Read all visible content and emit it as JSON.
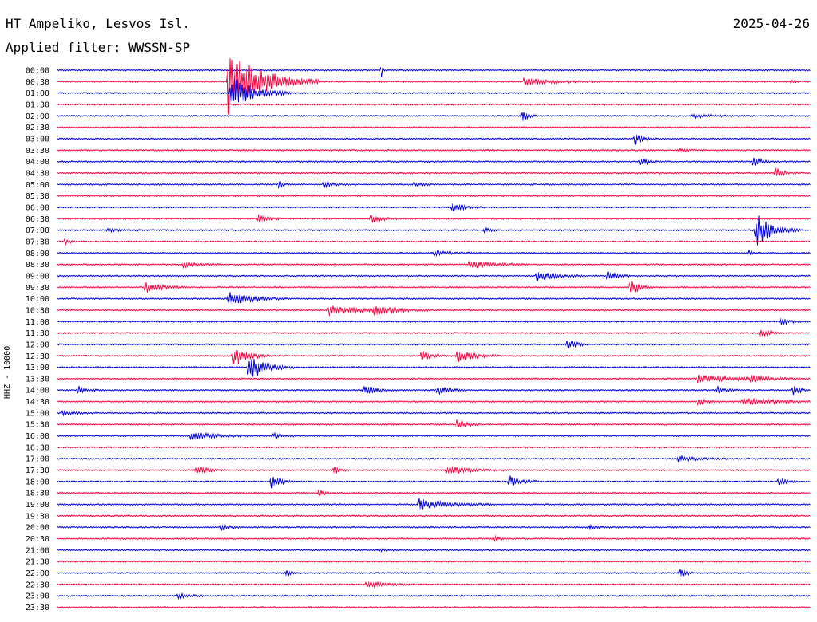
{
  "header": {
    "station": "HT Ampeliko, Lesvos Isl.",
    "filter": "Applied filter: WWSSN-SP",
    "date": "2025-04-26"
  },
  "chart_data": {
    "type": "line",
    "title": "HT Ampeliko, Lesvos Isl.",
    "subtitle": "Applied filter: WWSSN-SP",
    "ylabel": "HHZ - 10000",
    "xlabel": "",
    "grid": false,
    "colors": [
      "#0000dd",
      "#ff0040"
    ],
    "row_labels": [
      "00:00",
      "00:30",
      "01:00",
      "01:30",
      "02:00",
      "02:30",
      "03:00",
      "03:30",
      "04:00",
      "04:30",
      "05:00",
      "05:30",
      "06:00",
      "06:30",
      "07:00",
      "07:30",
      "08:00",
      "08:30",
      "09:00",
      "09:30",
      "10:00",
      "10:30",
      "11:00",
      "11:30",
      "12:00",
      "12:30",
      "13:00",
      "13:30",
      "14:00",
      "14:30",
      "15:00",
      "15:30",
      "16:00",
      "16:30",
      "17:00",
      "17:30",
      "18:00",
      "18:30",
      "19:00",
      "19:30",
      "20:00",
      "20:30",
      "21:00",
      "21:30",
      "22:00",
      "22:30",
      "23:00",
      "23:30"
    ],
    "xlim": [
      0,
      30
    ],
    "events": [
      {
        "row": 0,
        "t": 12.9,
        "amp": 1.0,
        "dur": 0.06
      },
      {
        "row": 1,
        "t": 6.8,
        "amp": 4.0,
        "dur": 1.2
      },
      {
        "row": 1,
        "t": 18.6,
        "amp": 0.4,
        "dur": 1.0
      },
      {
        "row": 1,
        "t": 29.2,
        "amp": 0.15,
        "dur": 0.2
      },
      {
        "row": 2,
        "t": 6.9,
        "amp": 2.0,
        "dur": 0.8
      },
      {
        "row": 4,
        "t": 18.5,
        "amp": 0.8,
        "dur": 0.2
      },
      {
        "row": 4,
        "t": 25.3,
        "amp": 0.2,
        "dur": 0.8
      },
      {
        "row": 6,
        "t": 23.0,
        "amp": 0.7,
        "dur": 0.3
      },
      {
        "row": 7,
        "t": 24.8,
        "amp": 0.2,
        "dur": 0.3
      },
      {
        "row": 8,
        "t": 23.2,
        "amp": 0.5,
        "dur": 0.3
      },
      {
        "row": 8,
        "t": 27.7,
        "amp": 0.6,
        "dur": 0.3
      },
      {
        "row": 9,
        "t": 28.6,
        "amp": 0.6,
        "dur": 0.3
      },
      {
        "row": 10,
        "t": 8.8,
        "amp": 0.4,
        "dur": 0.2
      },
      {
        "row": 10,
        "t": 10.6,
        "amp": 0.3,
        "dur": 0.4
      },
      {
        "row": 10,
        "t": 14.2,
        "amp": 0.3,
        "dur": 0.3
      },
      {
        "row": 12,
        "t": 15.7,
        "amp": 0.6,
        "dur": 0.4
      },
      {
        "row": 13,
        "t": 8.0,
        "amp": 0.5,
        "dur": 0.3
      },
      {
        "row": 13,
        "t": 12.5,
        "amp": 0.5,
        "dur": 0.4
      },
      {
        "row": 14,
        "t": 2.0,
        "amp": 0.3,
        "dur": 0.4
      },
      {
        "row": 14,
        "t": 17.0,
        "amp": 0.4,
        "dur": 0.2
      },
      {
        "row": 14,
        "t": 27.8,
        "amp": 2.0,
        "dur": 0.6
      },
      {
        "row": 15,
        "t": 0.3,
        "amp": 0.3,
        "dur": 0.2
      },
      {
        "row": 16,
        "t": 15.0,
        "amp": 0.3,
        "dur": 0.6
      },
      {
        "row": 16,
        "t": 27.5,
        "amp": 0.3,
        "dur": 0.2
      },
      {
        "row": 17,
        "t": 5.0,
        "amp": 0.3,
        "dur": 0.5
      },
      {
        "row": 17,
        "t": 16.4,
        "amp": 0.5,
        "dur": 0.8
      },
      {
        "row": 18,
        "t": 19.1,
        "amp": 0.6,
        "dur": 0.6
      },
      {
        "row": 18,
        "t": 21.9,
        "amp": 0.6,
        "dur": 0.3
      },
      {
        "row": 19,
        "t": 3.5,
        "amp": 0.6,
        "dur": 0.6
      },
      {
        "row": 19,
        "t": 22.8,
        "amp": 1.2,
        "dur": 0.3
      },
      {
        "row": 20,
        "t": 6.8,
        "amp": 0.8,
        "dur": 0.8
      },
      {
        "row": 21,
        "t": 10.8,
        "amp": 0.6,
        "dur": 1.0
      },
      {
        "row": 21,
        "t": 12.6,
        "amp": 0.5,
        "dur": 0.8
      },
      {
        "row": 22,
        "t": 28.8,
        "amp": 0.4,
        "dur": 0.3
      },
      {
        "row": 23,
        "t": 28.0,
        "amp": 0.5,
        "dur": 0.3
      },
      {
        "row": 24,
        "t": 20.3,
        "amp": 0.7,
        "dur": 0.3
      },
      {
        "row": 25,
        "t": 7.0,
        "amp": 1.2,
        "dur": 0.5
      },
      {
        "row": 25,
        "t": 14.5,
        "amp": 0.6,
        "dur": 0.4
      },
      {
        "row": 25,
        "t": 15.9,
        "amp": 0.8,
        "dur": 0.6
      },
      {
        "row": 26,
        "t": 7.6,
        "amp": 1.6,
        "dur": 0.6
      },
      {
        "row": 27,
        "t": 25.5,
        "amp": 0.4,
        "dur": 1.5
      },
      {
        "row": 27,
        "t": 27.6,
        "amp": 0.5,
        "dur": 0.5
      },
      {
        "row": 28,
        "t": 0.8,
        "amp": 0.5,
        "dur": 0.3
      },
      {
        "row": 28,
        "t": 12.2,
        "amp": 0.6,
        "dur": 0.4
      },
      {
        "row": 28,
        "t": 15.1,
        "amp": 0.6,
        "dur": 0.4
      },
      {
        "row": 28,
        "t": 26.3,
        "amp": 0.4,
        "dur": 0.3
      },
      {
        "row": 28,
        "t": 29.3,
        "amp": 0.5,
        "dur": 0.3
      },
      {
        "row": 29,
        "t": 25.5,
        "amp": 0.4,
        "dur": 0.3
      },
      {
        "row": 29,
        "t": 27.3,
        "amp": 0.4,
        "dur": 1.4
      },
      {
        "row": 30,
        "t": 0.2,
        "amp": 0.3,
        "dur": 0.4
      },
      {
        "row": 31,
        "t": 15.9,
        "amp": 0.5,
        "dur": 0.3
      },
      {
        "row": 32,
        "t": 5.3,
        "amp": 0.5,
        "dur": 0.8
      },
      {
        "row": 32,
        "t": 8.6,
        "amp": 0.4,
        "dur": 0.3
      },
      {
        "row": 34,
        "t": 24.7,
        "amp": 0.3,
        "dur": 0.8
      },
      {
        "row": 35,
        "t": 5.5,
        "amp": 0.6,
        "dur": 0.4
      },
      {
        "row": 35,
        "t": 11.0,
        "amp": 0.5,
        "dur": 0.2
      },
      {
        "row": 35,
        "t": 15.5,
        "amp": 0.5,
        "dur": 0.8
      },
      {
        "row": 36,
        "t": 8.5,
        "amp": 1.0,
        "dur": 0.3
      },
      {
        "row": 36,
        "t": 18.0,
        "amp": 0.7,
        "dur": 0.4
      },
      {
        "row": 36,
        "t": 28.7,
        "amp": 0.5,
        "dur": 0.3
      },
      {
        "row": 37,
        "t": 10.4,
        "amp": 0.4,
        "dur": 0.2
      },
      {
        "row": 38,
        "t": 14.4,
        "amp": 0.7,
        "dur": 1.0
      },
      {
        "row": 40,
        "t": 6.5,
        "amp": 0.5,
        "dur": 0.3
      },
      {
        "row": 40,
        "t": 21.2,
        "amp": 0.3,
        "dur": 0.3
      },
      {
        "row": 41,
        "t": 17.4,
        "amp": 0.3,
        "dur": 0.2
      },
      {
        "row": 42,
        "t": 12.7,
        "amp": 0.2,
        "dur": 0.3
      },
      {
        "row": 44,
        "t": 9.1,
        "amp": 0.5,
        "dur": 0.2
      },
      {
        "row": 44,
        "t": 24.8,
        "amp": 0.6,
        "dur": 0.2
      },
      {
        "row": 45,
        "t": 12.3,
        "amp": 0.4,
        "dur": 0.6
      },
      {
        "row": 46,
        "t": 4.8,
        "amp": 0.3,
        "dur": 0.4
      }
    ]
  }
}
